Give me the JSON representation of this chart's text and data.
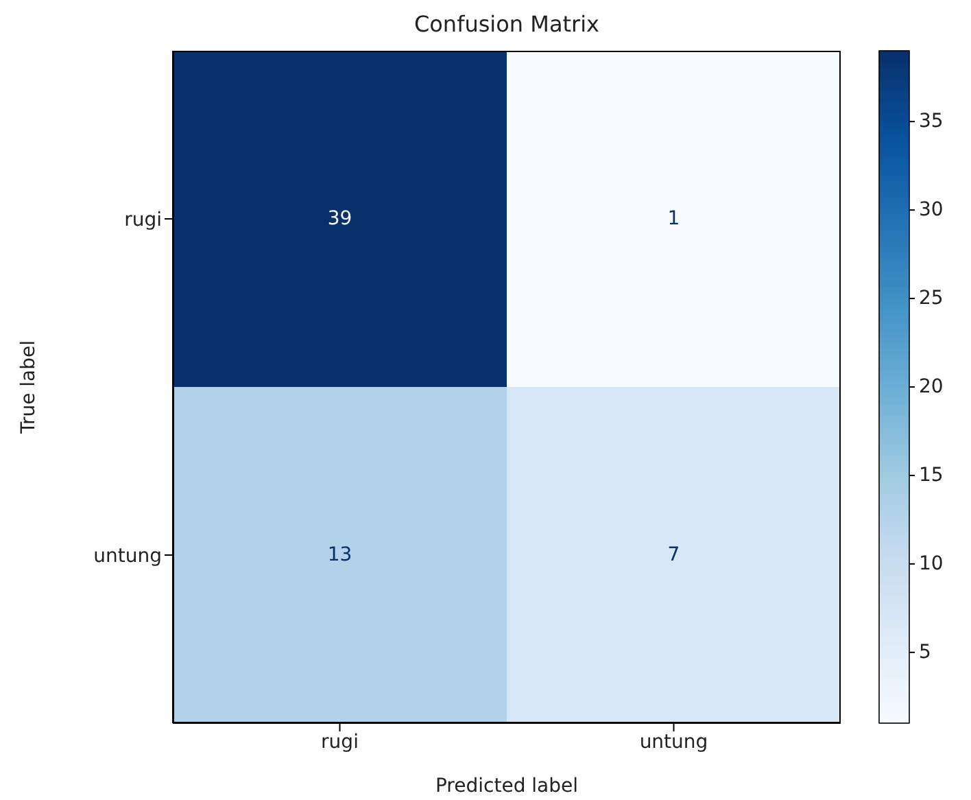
{
  "chart_data": {
    "type": "heatmap",
    "title": "Confusion Matrix",
    "xlabel": "Predicted label",
    "ylabel": "True label",
    "categories": [
      "rugi",
      "untung"
    ],
    "y_categories": [
      "rugi",
      "untung"
    ],
    "cells": [
      [
        39,
        1
      ],
      [
        13,
        7
      ]
    ],
    "clim": [
      1,
      39
    ],
    "cticks": [
      5,
      10,
      15,
      20,
      25,
      30,
      35
    ],
    "data_labels": true
  }
}
